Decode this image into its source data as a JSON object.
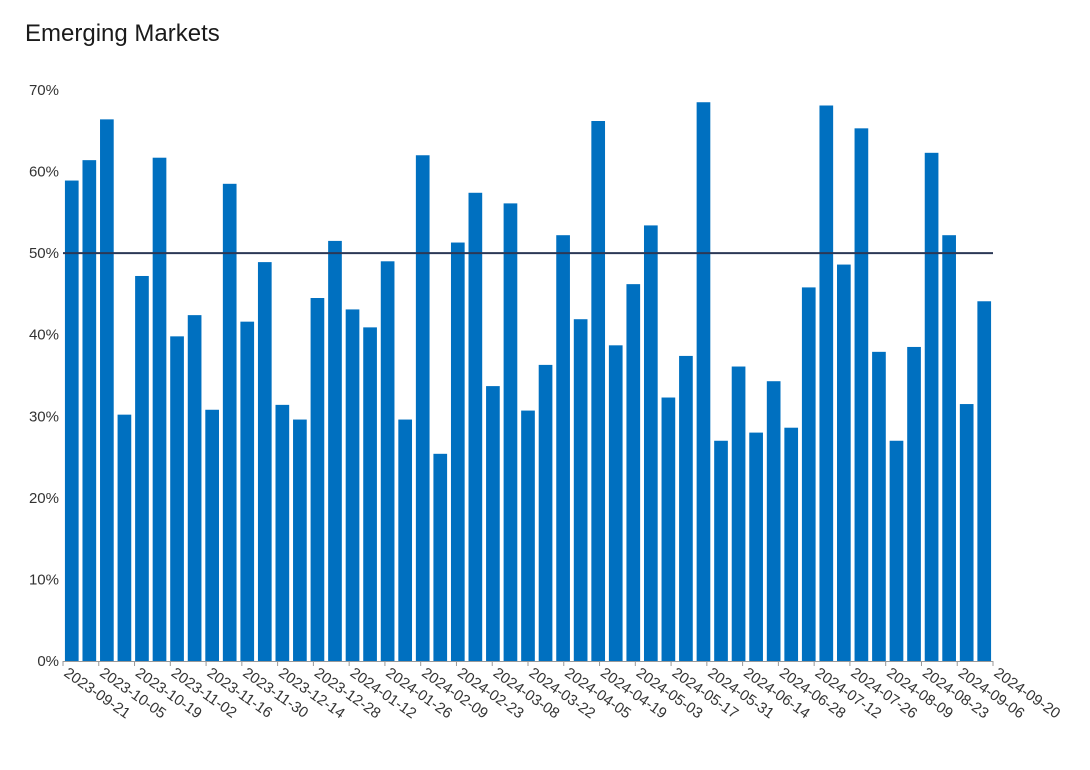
{
  "chart_data": {
    "type": "bar",
    "title": "Emerging Markets",
    "xlabel": "",
    "ylabel": "",
    "ylim": [
      0,
      0.7
    ],
    "y_ticks": [
      "0%",
      "10%",
      "20%",
      "30%",
      "40%",
      "50%",
      "60%",
      "70%"
    ],
    "y_tick_values": [
      0,
      0.1,
      0.2,
      0.3,
      0.4,
      0.5,
      0.6,
      0.7
    ],
    "reference_line": 0.5,
    "grid": false,
    "colors": {
      "bar": "#0070c0",
      "reference_line": "#2b3856",
      "axis": "#999999"
    },
    "x_tick_labels": [
      "2023-09-21",
      "2023-10-05",
      "2023-10-19",
      "2023-11-02",
      "2023-11-16",
      "2023-11-30",
      "2023-12-14",
      "2023-12-28",
      "2024-01-12",
      "2024-01-26",
      "2024-02-09",
      "2024-02-23",
      "2024-03-08",
      "2024-03-22",
      "2024-04-05",
      "2024-04-19",
      "2024-05-03",
      "2024-05-17",
      "2024-05-31",
      "2024-06-14",
      "2024-06-28",
      "2024-07-12",
      "2024-07-26",
      "2024-08-09",
      "2024-08-23",
      "2024-09-06",
      "2024-09-20"
    ],
    "values": [
      0.589,
      0.614,
      0.664,
      0.302,
      0.472,
      0.617,
      0.398,
      0.424,
      0.308,
      0.585,
      0.416,
      0.489,
      0.314,
      0.296,
      0.445,
      0.515,
      0.431,
      0.409,
      0.49,
      0.296,
      0.62,
      0.254,
      0.513,
      0.574,
      0.337,
      0.561,
      0.307,
      0.363,
      0.522,
      0.419,
      0.662,
      0.387,
      0.462,
      0.534,
      0.323,
      0.374,
      0.685,
      0.27,
      0.361,
      0.28,
      0.343,
      0.286,
      0.458,
      0.681,
      0.486,
      0.653,
      0.379,
      0.27,
      0.385,
      0.623,
      0.522,
      0.315,
      0.441
    ]
  }
}
